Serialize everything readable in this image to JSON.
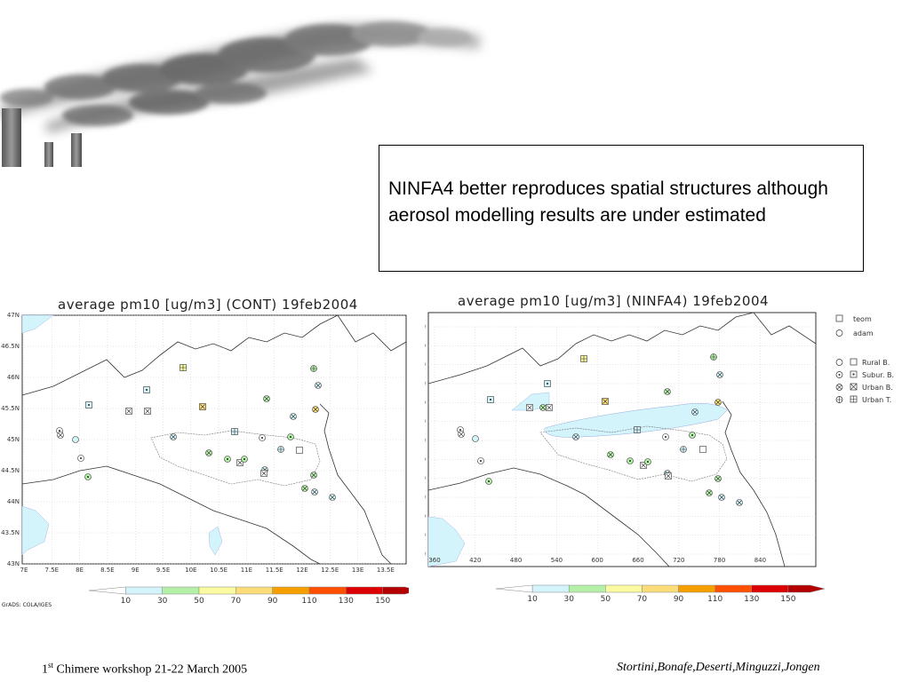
{
  "callout": {
    "text": "NINFA4  better reproduces spatial structures although  aerosol modelling results are under estimated"
  },
  "map_left": {
    "title": "average pm10 [ug/m3] (CONT) 19feb2004",
    "y_ticks": [
      "47N",
      "46.5N",
      "46N",
      "45.5N",
      "45N",
      "44.5N",
      "44N",
      "43.5N",
      "43N"
    ],
    "x_ticks": [
      "7E",
      "7.5E",
      "8E",
      "8.5E",
      "9E",
      "9.5E",
      "10E",
      "10.5E",
      "11E",
      "11.5E",
      "12E",
      "12.5E",
      "13E",
      "13.5E"
    ],
    "colorbar_labels": [
      "10",
      "30",
      "50",
      "70",
      "90",
      "110",
      "130",
      "150"
    ],
    "credit": "GrADS: COLA/IGES"
  },
  "map_right": {
    "title": "average pm10 [ug/m3] (NINFA4) 19feb2004",
    "y_ticks": [
      "5160",
      "5130",
      "5100",
      "5070",
      "5040",
      "5010",
      "4980",
      "4950",
      "4920",
      "4890",
      "4860",
      "4830",
      "4800"
    ],
    "x_ticks": [
      "360",
      "420",
      "480",
      "540",
      "600",
      "660",
      "720",
      "780",
      "840"
    ],
    "colorbar_labels": [
      "10",
      "30",
      "50",
      "70",
      "90",
      "110",
      "130",
      "150"
    ],
    "legend": {
      "teom": "teom",
      "adam": "adam",
      "rural": "Rural B.",
      "subur": "Subur. B.",
      "urban_b": "Urban B.",
      "urban_t": "Urban T."
    }
  },
  "colorscale": [
    "#ffffff",
    "#d2f4fa",
    "#b4f0a8",
    "#fafaa0",
    "#fadc78",
    "#f5a000",
    "#ff5000",
    "#dc0000",
    "#b40000"
  ],
  "footer": {
    "left_prefix": "1",
    "left_sup": "st",
    "left_rest": " Chimere workshop 21-22 March  2005",
    "right": "Stortini,Bonafe,Deserti,Minguzzi,Jongen"
  }
}
